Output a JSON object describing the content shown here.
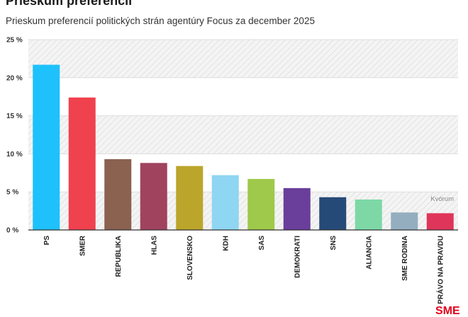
{
  "title": "Prieskum preferencií",
  "subtitle": "Prieskum preferencií politických strán agentúry Focus za december 2025",
  "logo_text": "SME",
  "chart_data": {
    "type": "bar",
    "categories": [
      "PS",
      "SMER",
      "REPUBLIKA",
      "HLAS",
      "SLOVENSKO",
      "KDH",
      "SAS",
      "DEMOKRATI",
      "SNS",
      "ALIANCIA",
      "SME RODINA",
      "PRÁVO NA PRAVDU"
    ],
    "values": [
      21.7,
      17.4,
      9.3,
      8.8,
      8.4,
      7.2,
      6.7,
      5.5,
      4.3,
      4.0,
      2.3,
      2.2
    ],
    "colors": [
      "#1ec1fb",
      "#f0414e",
      "#8b6150",
      "#a0435e",
      "#bba62b",
      "#8fd6f2",
      "#9fc94b",
      "#6a3e9b",
      "#264a78",
      "#7dd8a6",
      "#94aec0",
      "#e0355a"
    ],
    "ylim": [
      0,
      25
    ],
    "yticks": [
      0,
      5,
      10,
      15,
      20,
      25
    ],
    "ytick_labels": [
      "0 %",
      "5 %",
      "10 %",
      "15 %",
      "20 %",
      "25 %"
    ],
    "grid": true,
    "threshold": {
      "value": 5,
      "label": "Kvórum"
    }
  }
}
